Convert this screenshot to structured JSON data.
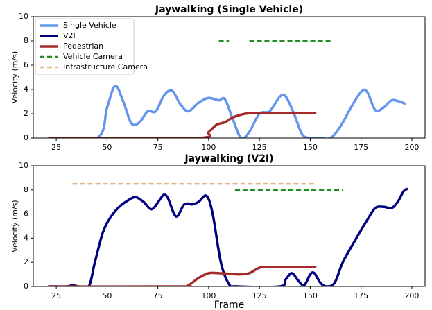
{
  "chart_data": [
    {
      "type": "line",
      "title": "Jaywalking (Single Vehicle)",
      "ylabel": "Velocity (m/s)",
      "xlim": [
        13.7,
        206.5
      ],
      "ylim": [
        0,
        10
      ],
      "xticks": [
        25,
        50,
        75,
        100,
        125,
        150,
        175,
        200
      ],
      "yticks": [
        0,
        2,
        4,
        6,
        8,
        10
      ],
      "legend": "upper left",
      "series": [
        {
          "name": "Single Vehicle",
          "color": "#6495ed",
          "linestyle": "solid",
          "x": [
            21,
            45,
            50,
            54,
            58,
            62,
            66,
            70,
            74,
            78,
            82,
            86,
            90,
            95,
            100,
            105,
            108,
            112,
            116,
            120,
            125,
            130,
            135,
            138,
            142,
            146,
            150,
            155,
            160,
            165,
            170,
            175,
            178,
            182,
            186,
            190,
            194,
            197
          ],
          "values": [
            0,
            0,
            2.5,
            4.3,
            3,
            1.2,
            1.3,
            2.2,
            2.2,
            3.5,
            3.9,
            2.8,
            2.2,
            2.9,
            3.3,
            3.1,
            3.2,
            1.5,
            0,
            0.5,
            2,
            2.2,
            3.4,
            3.4,
            2,
            0.3,
            0,
            0,
            0,
            1,
            2.5,
            3.8,
            3.8,
            2.3,
            2.5,
            3.1,
            3,
            2.8
          ]
        },
        {
          "name": "V2I",
          "color": "#000080",
          "linestyle": "solid",
          "x": [],
          "values": []
        },
        {
          "name": "Pedestrian",
          "color": "#a52a2a",
          "linestyle": "solid",
          "x": [
            21,
            40,
            95,
            100,
            104,
            108,
            112,
            118,
            125,
            153
          ],
          "values": [
            0,
            0,
            0,
            0.5,
            1.1,
            1.3,
            1.7,
            2.0,
            2.05,
            2.05
          ]
        },
        {
          "name": "Vehicle Camera",
          "color": "#228b22",
          "linestyle": "dashed",
          "x": [
            105,
            110,
            null,
            120,
            160
          ],
          "values": [
            8,
            8,
            null,
            8,
            8
          ]
        },
        {
          "name": "Infrastructure Camera",
          "color": "#deb887",
          "linestyle": "dashed",
          "x": [],
          "values": []
        }
      ]
    },
    {
      "type": "line",
      "title": "Jaywalking (V2I)",
      "ylabel": "Velocity (m/s)",
      "xlabel": "Frame",
      "xlim": [
        13.7,
        206.5
      ],
      "ylim": [
        0,
        10
      ],
      "xticks": [
        25,
        50,
        75,
        100,
        125,
        150,
        175,
        200
      ],
      "yticks": [
        0,
        2,
        4,
        6,
        8,
        10
      ],
      "series": [
        {
          "color": "#000080",
          "linestyle": "solid",
          "x": [
            21,
            30,
            33,
            36,
            41,
            44,
            48,
            52,
            56,
            60,
            64,
            68,
            72,
            76,
            78,
            80,
            84,
            88,
            92,
            95,
            99,
            102,
            106,
            110,
            114,
            135,
            138,
            141,
            144,
            147,
            150,
            152,
            155,
            158,
            162,
            166,
            172,
            178,
            182,
            186,
            190,
            193,
            196,
            198
          ],
          "values": [
            0,
            0,
            0.1,
            0,
            0,
            2,
            4.5,
            5.8,
            6.6,
            7.1,
            7.4,
            7,
            6.4,
            7.2,
            7.6,
            7.3,
            5.8,
            6.8,
            6.8,
            7,
            7.5,
            6,
            2,
            0.2,
            0,
            0,
            0.6,
            1.1,
            0.5,
            0.1,
            1,
            1.1,
            0.3,
            0,
            0.3,
            2,
            3.8,
            5.5,
            6.5,
            6.6,
            6.5,
            7,
            7.9,
            8.1
          ]
        },
        {
          "color": "#a52a2a",
          "linestyle": "solid",
          "x": [
            21,
            85,
            90,
            95,
            100,
            105,
            110,
            115,
            120,
            125,
            130,
            153
          ],
          "values": [
            0,
            0,
            0.1,
            0.7,
            1.1,
            1.1,
            1.05,
            1.0,
            1.1,
            1.55,
            1.6,
            1.6
          ]
        },
        {
          "color": "#deb887",
          "linestyle": "dashed",
          "x": [
            33,
            153
          ],
          "values": [
            8.5,
            8.5
          ]
        },
        {
          "color": "#228b22",
          "linestyle": "dashed",
          "x": [
            113,
            166
          ],
          "values": [
            8,
            8
          ]
        }
      ]
    }
  ]
}
